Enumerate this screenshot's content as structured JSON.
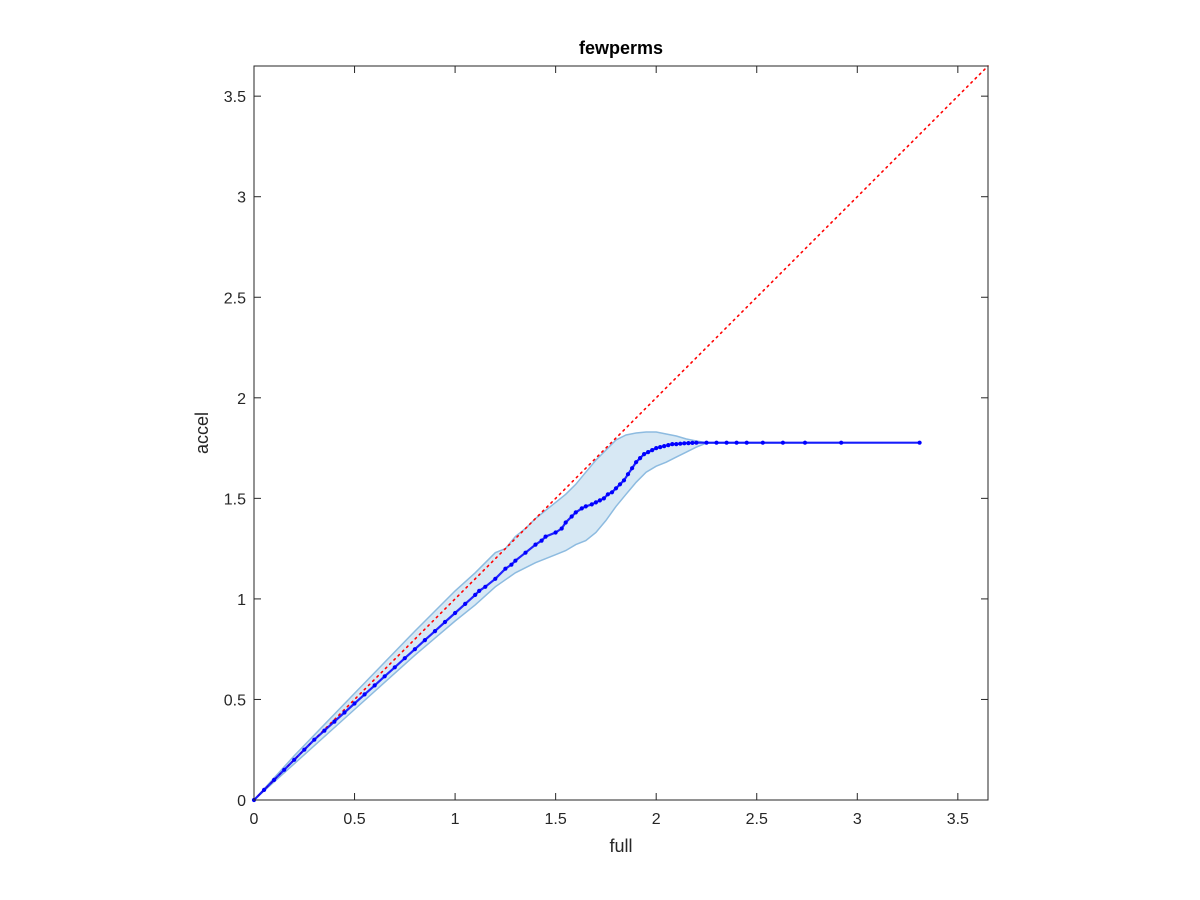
{
  "chart_data": {
    "type": "line",
    "title": "fewperms",
    "xlabel": "full",
    "ylabel": "accel",
    "xlim": [
      0,
      3.65
    ],
    "ylim": [
      0,
      3.65
    ],
    "grid": false,
    "x_ticks": [
      0,
      0.5,
      1,
      1.5,
      2,
      2.5,
      3,
      3.5
    ],
    "y_ticks": [
      0,
      0.5,
      1,
      1.5,
      2,
      2.5,
      3,
      3.5
    ],
    "x_tick_labels": [
      "0",
      "0.5",
      "1",
      "1.5",
      "2",
      "2.5",
      "3",
      "3.5"
    ],
    "y_tick_labels": [
      "0",
      "0.5",
      "1",
      "1.5",
      "2",
      "2.5",
      "3",
      "3.5"
    ],
    "colors": {
      "identity_line": "#ff0000",
      "median_points": "#0000ff",
      "band_fill": "#d3e5f3",
      "band_edge": "#8dbbe0",
      "axes": "#262626"
    },
    "series": [
      {
        "role": "identity",
        "style": "dotted",
        "x": [
          0,
          3.65
        ],
        "y": [
          0,
          3.65
        ]
      },
      {
        "role": "median",
        "style": "dots",
        "x": [
          0.0,
          0.05,
          0.1,
          0.15,
          0.2,
          0.25,
          0.3,
          0.35,
          0.4,
          0.45,
          0.5,
          0.55,
          0.6,
          0.65,
          0.7,
          0.75,
          0.8,
          0.85,
          0.9,
          0.95,
          1.0,
          1.05,
          1.1,
          1.12,
          1.15,
          1.2,
          1.25,
          1.28,
          1.3,
          1.35,
          1.4,
          1.43,
          1.45,
          1.5,
          1.53,
          1.55,
          1.58,
          1.6,
          1.63,
          1.65,
          1.68,
          1.7,
          1.72,
          1.74,
          1.76,
          1.78,
          1.8,
          1.82,
          1.84,
          1.86,
          1.88,
          1.9,
          1.92,
          1.94,
          1.96,
          1.98,
          2.0,
          2.02,
          2.04,
          2.06,
          2.08,
          2.1,
          2.12,
          2.14,
          2.16,
          2.18,
          2.2,
          2.25,
          2.3,
          2.35,
          2.4,
          2.45,
          2.53,
          2.63,
          2.74,
          2.92,
          3.31
        ],
        "y": [
          0.0,
          0.05,
          0.1,
          0.15,
          0.2,
          0.25,
          0.3,
          0.345,
          0.39,
          0.435,
          0.48,
          0.525,
          0.57,
          0.615,
          0.66,
          0.705,
          0.75,
          0.795,
          0.84,
          0.885,
          0.93,
          0.975,
          1.02,
          1.04,
          1.06,
          1.1,
          1.15,
          1.17,
          1.19,
          1.23,
          1.27,
          1.29,
          1.31,
          1.33,
          1.35,
          1.38,
          1.41,
          1.43,
          1.45,
          1.46,
          1.47,
          1.48,
          1.49,
          1.5,
          1.52,
          1.53,
          1.55,
          1.57,
          1.59,
          1.62,
          1.65,
          1.68,
          1.7,
          1.72,
          1.73,
          1.74,
          1.75,
          1.755,
          1.76,
          1.765,
          1.77,
          1.77,
          1.772,
          1.774,
          1.775,
          1.776,
          1.777,
          1.777,
          1.777,
          1.777,
          1.777,
          1.777,
          1.777,
          1.777,
          1.777,
          1.777,
          1.777
        ]
      },
      {
        "role": "band_upper",
        "style": "fill",
        "x": [
          0.0,
          0.2,
          0.5,
          0.8,
          1.0,
          1.1,
          1.15,
          1.2,
          1.25,
          1.3,
          1.35,
          1.4,
          1.45,
          1.5,
          1.55,
          1.6,
          1.65,
          1.7,
          1.75,
          1.8,
          1.85,
          1.9,
          1.95,
          2.0,
          2.05,
          2.1,
          2.15,
          2.2,
          2.25,
          3.31
        ],
        "y": [
          0.0,
          0.22,
          0.53,
          0.84,
          1.04,
          1.13,
          1.18,
          1.23,
          1.25,
          1.31,
          1.35,
          1.4,
          1.44,
          1.48,
          1.52,
          1.57,
          1.63,
          1.69,
          1.74,
          1.79,
          1.815,
          1.825,
          1.83,
          1.83,
          1.82,
          1.81,
          1.795,
          1.785,
          1.777,
          1.777
        ]
      },
      {
        "role": "band_lower",
        "style": "fill",
        "x": [
          0.0,
          0.2,
          0.5,
          0.8,
          1.0,
          1.1,
          1.2,
          1.3,
          1.4,
          1.5,
          1.55,
          1.6,
          1.65,
          1.7,
          1.75,
          1.8,
          1.85,
          1.9,
          1.95,
          2.0,
          2.05,
          2.1,
          2.15,
          2.2,
          2.25,
          3.31
        ],
        "y": [
          0.0,
          0.18,
          0.45,
          0.72,
          0.89,
          0.97,
          1.06,
          1.13,
          1.18,
          1.22,
          1.24,
          1.27,
          1.29,
          1.33,
          1.39,
          1.46,
          1.52,
          1.58,
          1.63,
          1.66,
          1.68,
          1.705,
          1.73,
          1.755,
          1.775,
          1.777
        ]
      }
    ]
  }
}
